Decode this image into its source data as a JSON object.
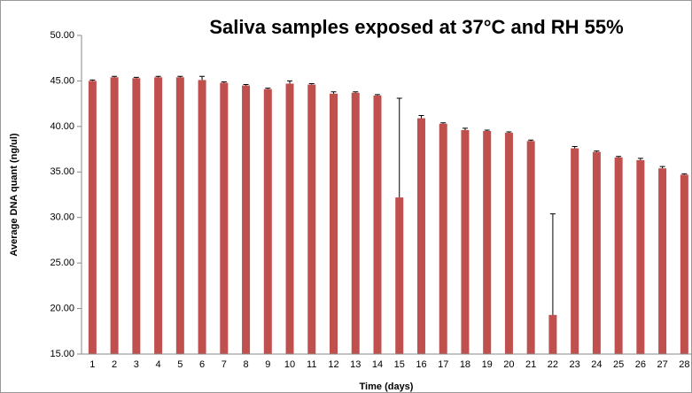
{
  "chart_data": {
    "type": "bar",
    "title": "Saliva samples exposed at 37°C and RH 55%",
    "x_label": "Time (days)",
    "y_label": "Average DNA quant (ng/ul)",
    "categories": [
      "1",
      "2",
      "3",
      "4",
      "5",
      "6",
      "7",
      "8",
      "9",
      "10",
      "11",
      "12",
      "13",
      "14",
      "15",
      "16",
      "17",
      "18",
      "19",
      "20",
      "21",
      "22",
      "23",
      "24",
      "25",
      "26",
      "27",
      "28"
    ],
    "values": [
      45.0,
      45.4,
      45.3,
      45.4,
      45.4,
      45.1,
      44.8,
      44.5,
      44.1,
      44.7,
      44.6,
      43.6,
      43.7,
      43.4,
      32.2,
      40.9,
      40.3,
      39.6,
      39.5,
      39.3,
      38.4,
      19.3,
      37.6,
      37.2,
      36.6,
      36.3,
      35.4,
      34.7
    ],
    "errors": [
      0.1,
      0.1,
      0.1,
      0.1,
      0.1,
      0.4,
      0.1,
      0.1,
      0.1,
      0.3,
      0.1,
      0.2,
      0.1,
      0.1,
      10.9,
      0.3,
      0.1,
      0.2,
      0.1,
      0.1,
      0.1,
      11.1,
      0.2,
      0.1,
      0.1,
      0.2,
      0.2,
      0.1
    ],
    "color": "#c0504d",
    "ylim": [
      15,
      50
    ],
    "yticks": [
      {
        "value": 15,
        "label": "15.00"
      },
      {
        "value": 20,
        "label": "20.00"
      },
      {
        "value": 25,
        "label": "25.00"
      },
      {
        "value": 30,
        "label": "30.00"
      },
      {
        "value": 35,
        "label": "35.00"
      },
      {
        "value": 40,
        "label": "40.00"
      },
      {
        "value": 45,
        "label": "45.00"
      },
      {
        "value": 50,
        "label": "50.00"
      }
    ],
    "grid": false
  }
}
